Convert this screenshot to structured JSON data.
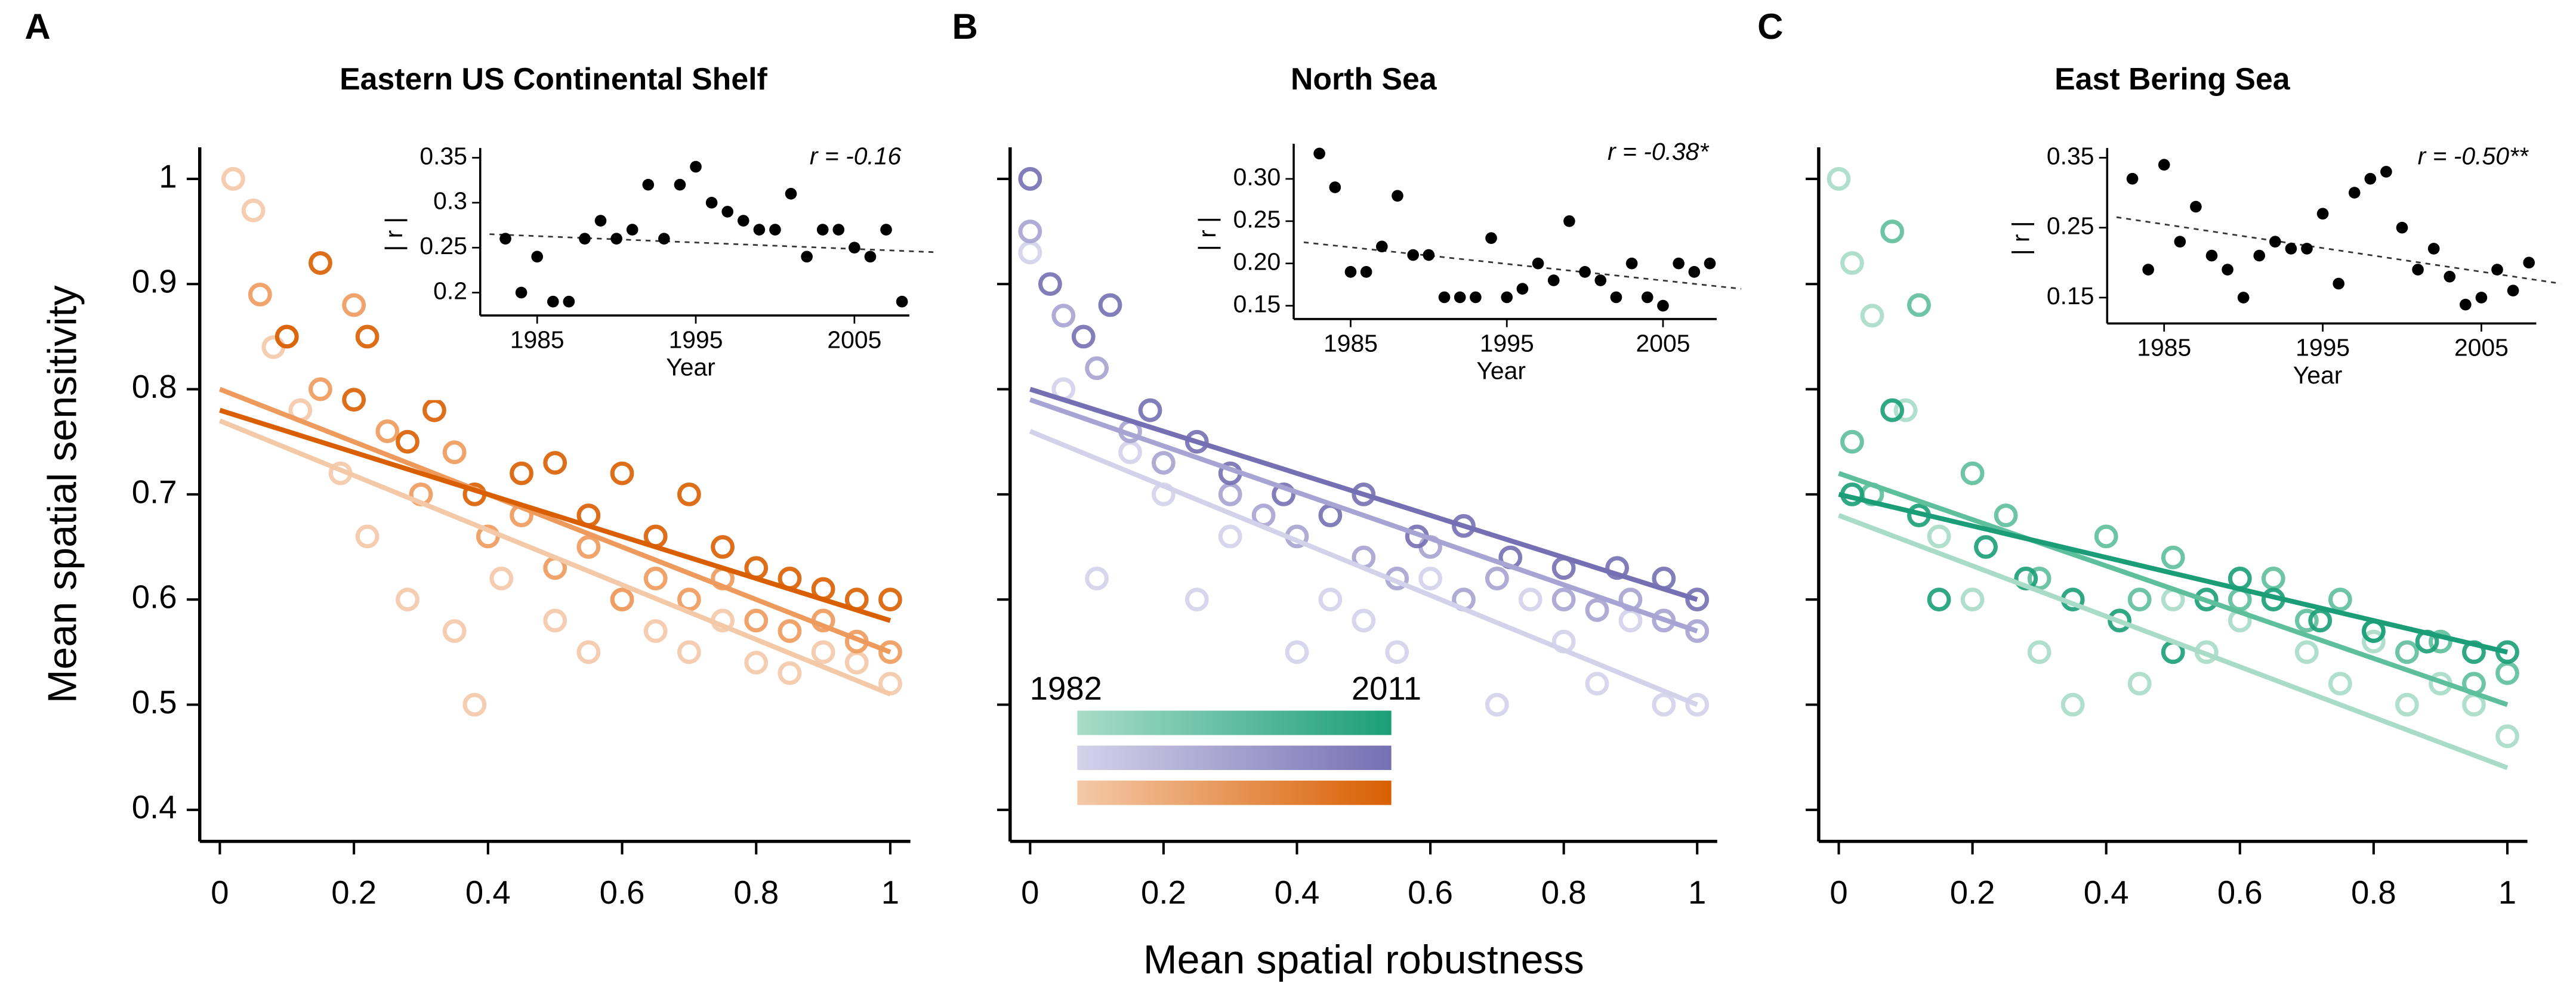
{
  "chart_data": [
    {
      "type": "scatter",
      "panel_label": "A",
      "title": "Eastern US Continental Shelf",
      "ylabel": "Mean spatial sensitivity",
      "xlim": [
        -0.03,
        1.03
      ],
      "ylim": [
        0.37,
        1.03
      ],
      "xticks": [
        0,
        0.2,
        0.4,
        0.6,
        0.8,
        1
      ],
      "yticks": [
        0.4,
        0.5,
        0.6,
        0.7,
        0.8,
        0.9,
        1
      ],
      "show_ytick_labels": true,
      "series": [
        {
          "color": "#f4c9a8",
          "x": [
            0.02,
            0.05,
            0.08,
            0.12,
            0.18,
            0.22,
            0.28,
            0.35,
            0.38,
            0.42,
            0.5,
            0.55,
            0.6,
            0.65,
            0.7,
            0.75,
            0.8,
            0.85,
            0.9,
            0.95,
            1.0
          ],
          "values": [
            1.0,
            0.97,
            0.84,
            0.78,
            0.72,
            0.66,
            0.6,
            0.57,
            0.5,
            0.62,
            0.58,
            0.55,
            0.6,
            0.57,
            0.55,
            0.58,
            0.54,
            0.53,
            0.55,
            0.54,
            0.52
          ]
        },
        {
          "color": "#ee9a5c",
          "x": [
            0.06,
            0.1,
            0.15,
            0.2,
            0.25,
            0.3,
            0.35,
            0.4,
            0.45,
            0.5,
            0.55,
            0.6,
            0.65,
            0.7,
            0.75,
            0.8,
            0.85,
            0.9,
            0.95,
            1.0
          ],
          "values": [
            0.89,
            0.85,
            0.8,
            0.88,
            0.76,
            0.7,
            0.74,
            0.66,
            0.68,
            0.63,
            0.65,
            0.6,
            0.62,
            0.6,
            0.62,
            0.58,
            0.57,
            0.58,
            0.56,
            0.55
          ]
        },
        {
          "color": "#d95f02",
          "x": [
            0.1,
            0.15,
            0.2,
            0.22,
            0.28,
            0.32,
            0.38,
            0.45,
            0.5,
            0.55,
            0.6,
            0.65,
            0.7,
            0.75,
            0.8,
            0.85,
            0.9,
            0.95,
            1.0
          ],
          "values": [
            0.85,
            0.92,
            0.79,
            0.85,
            0.75,
            0.78,
            0.7,
            0.72,
            0.73,
            0.68,
            0.72,
            0.66,
            0.7,
            0.65,
            0.63,
            0.62,
            0.61,
            0.6,
            0.6
          ]
        }
      ],
      "fit_x": [
        0,
        1
      ],
      "fits": [
        {
          "color": "#f4c9a8",
          "y": [
            0.77,
            0.51
          ]
        },
        {
          "color": "#ee9a5c",
          "y": [
            0.8,
            0.55
          ]
        },
        {
          "color": "#d95f02",
          "y": [
            0.78,
            0.58
          ]
        }
      ],
      "inset": {
        "xlabel": "Year",
        "ylabel": "| r |",
        "annotation": "r = -0.16",
        "xlim": [
          1982,
          2010
        ],
        "ylim": [
          0.18,
          0.35
        ],
        "xticks": [
          1985,
          1995,
          2005
        ],
        "yticks": [
          0.35,
          0.3,
          0.25,
          0.2
        ],
        "x": [
          1983,
          1984,
          1985,
          1986,
          1987,
          1988,
          1989,
          1990,
          1991,
          1992,
          1993,
          1994,
          1995,
          1996,
          1997,
          1998,
          1999,
          2000,
          2001,
          2002,
          2003,
          2004,
          2005,
          2006,
          2007,
          2008
        ],
        "values": [
          0.26,
          0.2,
          0.24,
          0.19,
          0.19,
          0.26,
          0.28,
          0.26,
          0.27,
          0.32,
          0.26,
          0.32,
          0.34,
          0.3,
          0.29,
          0.28,
          0.27,
          0.27,
          0.31,
          0.24,
          0.27,
          0.27,
          0.25,
          0.24,
          0.27,
          0.19
        ],
        "trend": [
          0.265,
          0.245
        ]
      }
    },
    {
      "type": "scatter",
      "panel_label": "B",
      "title": "North Sea",
      "xlabel": "Mean spatial robustness",
      "xlim": [
        -0.03,
        1.03
      ],
      "ylim": [
        0.37,
        1.03
      ],
      "xticks": [
        0,
        0.2,
        0.4,
        0.6,
        0.8,
        1
      ],
      "yticks": [
        0.4,
        0.5,
        0.6,
        0.7,
        0.8,
        0.9,
        1
      ],
      "show_ytick_labels": false,
      "series": [
        {
          "color": "#d4d2ea",
          "x": [
            0,
            0.05,
            0.1,
            0.15,
            0.2,
            0.25,
            0.3,
            0.4,
            0.45,
            0.5,
            0.55,
            0.6,
            0.7,
            0.75,
            0.8,
            0.85,
            0.9,
            0.95,
            1.0
          ],
          "values": [
            0.93,
            0.8,
            0.62,
            0.74,
            0.7,
            0.6,
            0.66,
            0.55,
            0.6,
            0.58,
            0.55,
            0.62,
            0.5,
            0.6,
            0.56,
            0.52,
            0.58,
            0.5,
            0.5
          ]
        },
        {
          "color": "#a7a3d2",
          "x": [
            0,
            0.05,
            0.1,
            0.15,
            0.2,
            0.3,
            0.35,
            0.4,
            0.5,
            0.55,
            0.6,
            0.65,
            0.7,
            0.8,
            0.85,
            0.9,
            0.95,
            1.0
          ],
          "values": [
            0.95,
            0.87,
            0.82,
            0.76,
            0.73,
            0.7,
            0.68,
            0.66,
            0.64,
            0.62,
            0.65,
            0.6,
            0.62,
            0.6,
            0.59,
            0.6,
            0.58,
            0.57
          ]
        },
        {
          "color": "#7570b3",
          "x": [
            0,
            0.03,
            0.08,
            0.12,
            0.18,
            0.25,
            0.3,
            0.38,
            0.45,
            0.5,
            0.58,
            0.65,
            0.72,
            0.8,
            0.88,
            0.95,
            1.0
          ],
          "values": [
            1.0,
            0.9,
            0.85,
            0.88,
            0.78,
            0.75,
            0.72,
            0.7,
            0.68,
            0.7,
            0.66,
            0.67,
            0.64,
            0.63,
            0.63,
            0.62,
            0.6
          ]
        }
      ],
      "fit_x": [
        0,
        1
      ],
      "fits": [
        {
          "color": "#d4d2ea",
          "y": [
            0.76,
            0.5
          ]
        },
        {
          "color": "#a7a3d2",
          "y": [
            0.79,
            0.57
          ]
        },
        {
          "color": "#7570b3",
          "y": [
            0.8,
            0.6
          ]
        }
      ],
      "inset": {
        "xlabel": "Year",
        "ylabel": "| r |",
        "annotation": "r = -0.38*",
        "xlim": [
          1982,
          2010
        ],
        "ylim": [
          0.14,
          0.33
        ],
        "xticks": [
          1985,
          1995,
          2005
        ],
        "yticks": [
          {
            "value": 0.3,
            "label": "0.30"
          },
          0.25,
          {
            "value": 0.2,
            "label": "0.20"
          },
          0.15
        ],
        "x": [
          1983,
          1984,
          1985,
          1986,
          1987,
          1988,
          1989,
          1990,
          1991,
          1992,
          1993,
          1994,
          1995,
          1996,
          1997,
          1998,
          1999,
          2000,
          2001,
          2002,
          2003,
          2004,
          2005,
          2006,
          2007,
          2008
        ],
        "values": [
          0.33,
          0.29,
          0.19,
          0.19,
          0.22,
          0.28,
          0.21,
          0.21,
          0.16,
          0.16,
          0.16,
          0.23,
          0.16,
          0.17,
          0.2,
          0.18,
          0.25,
          0.19,
          0.18,
          0.16,
          0.2,
          0.16,
          0.15,
          0.2,
          0.19,
          0.2
        ],
        "trend": [
          0.225,
          0.17
        ]
      }
    },
    {
      "type": "scatter",
      "panel_label": "C",
      "title": "East Bering Sea",
      "xlim": [
        -0.03,
        1.03
      ],
      "ylim": [
        0.37,
        1.03
      ],
      "xticks": [
        0,
        0.2,
        0.4,
        0.6,
        0.8,
        1
      ],
      "yticks": [
        0.4,
        0.5,
        0.6,
        0.7,
        0.8,
        0.9,
        1
      ],
      "show_ytick_labels": false,
      "series": [
        {
          "color": "#a8dcc9",
          "x": [
            0,
            0.02,
            0.05,
            0.1,
            0.15,
            0.2,
            0.3,
            0.35,
            0.45,
            0.5,
            0.55,
            0.6,
            0.7,
            0.75,
            0.8,
            0.85,
            0.9,
            0.95,
            1.0
          ],
          "values": [
            1.0,
            0.92,
            0.87,
            0.78,
            0.66,
            0.6,
            0.55,
            0.5,
            0.52,
            0.6,
            0.55,
            0.58,
            0.55,
            0.52,
            0.56,
            0.5,
            0.52,
            0.5,
            0.47
          ]
        },
        {
          "color": "#5ebf9c",
          "x": [
            0.02,
            0.05,
            0.08,
            0.12,
            0.2,
            0.25,
            0.3,
            0.4,
            0.45,
            0.5,
            0.6,
            0.65,
            0.7,
            0.75,
            0.8,
            0.85,
            0.9,
            0.95,
            1.0
          ],
          "values": [
            0.75,
            0.7,
            0.95,
            0.88,
            0.72,
            0.68,
            0.62,
            0.66,
            0.6,
            0.64,
            0.6,
            0.62,
            0.58,
            0.6,
            0.57,
            0.55,
            0.56,
            0.52,
            0.53
          ]
        },
        {
          "color": "#1b9e77",
          "x": [
            0.02,
            0.08,
            0.12,
            0.15,
            0.22,
            0.28,
            0.35,
            0.42,
            0.5,
            0.55,
            0.6,
            0.65,
            0.72,
            0.8,
            0.88,
            0.95,
            1.0
          ],
          "values": [
            0.7,
            0.78,
            0.68,
            0.6,
            0.65,
            0.62,
            0.6,
            0.58,
            0.55,
            0.6,
            0.62,
            0.6,
            0.58,
            0.57,
            0.56,
            0.55,
            0.55
          ]
        }
      ],
      "fit_x": [
        0,
        1
      ],
      "fits": [
        {
          "color": "#a8dcc9",
          "y": [
            0.68,
            0.44
          ]
        },
        {
          "color": "#5ebf9c",
          "y": [
            0.72,
            0.5
          ]
        },
        {
          "color": "#1b9e77",
          "y": [
            0.7,
            0.55
          ]
        }
      ],
      "inset": {
        "xlabel": "Year",
        "ylabel": "| r |",
        "annotation": "r = -0.50**",
        "xlim": [
          1982,
          2010
        ],
        "ylim": [
          0.12,
          0.35
        ],
        "xticks": [
          1985,
          1995,
          2005
        ],
        "yticks": [
          0.35,
          0.25,
          0.15
        ],
        "x": [
          1983,
          1984,
          1985,
          1986,
          1987,
          1988,
          1989,
          1990,
          1991,
          1992,
          1993,
          1994,
          1995,
          1996,
          1997,
          1998,
          1999,
          2000,
          2001,
          2002,
          2003,
          2004,
          2005,
          2006,
          2007,
          2008
        ],
        "values": [
          0.32,
          0.19,
          0.34,
          0.23,
          0.28,
          0.21,
          0.19,
          0.15,
          0.21,
          0.23,
          0.22,
          0.22,
          0.27,
          0.17,
          0.3,
          0.32,
          0.33,
          0.25,
          0.19,
          0.22,
          0.18,
          0.14,
          0.15,
          0.19,
          0.16,
          0.2
        ],
        "trend": [
          0.265,
          0.17
        ]
      }
    }
  ],
  "legend": {
    "start": "1982",
    "end": "2011"
  }
}
